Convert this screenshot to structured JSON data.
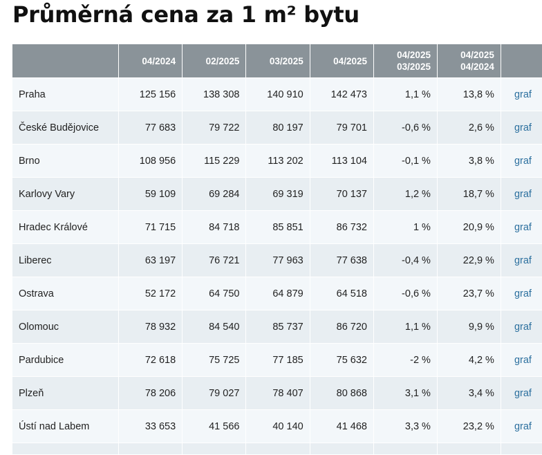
{
  "title": "Průměrná cena za 1 m² bytu",
  "table": {
    "headers": {
      "city": "",
      "c1": "04/2024",
      "c2": "02/2025",
      "c3": "03/2025",
      "c4": "04/2025",
      "c5_top": "04/2025",
      "c5_bottom": "03/2025",
      "c6_top": "04/2025",
      "c6_bottom": "04/2024",
      "link": ""
    },
    "rows": [
      {
        "city": "Praha",
        "v1": "125 156",
        "v2": "138 308",
        "v3": "140 910",
        "v4": "142 473",
        "mom": "1,1 %",
        "yoy": "13,8 %",
        "link": "graf"
      },
      {
        "city": "České Budějovice",
        "v1": "77 683",
        "v2": "79 722",
        "v3": "80 197",
        "v4": "79 701",
        "mom": "-0,6 %",
        "yoy": "2,6 %",
        "link": "graf"
      },
      {
        "city": "Brno",
        "v1": "108 956",
        "v2": "115 229",
        "v3": "113 202",
        "v4": "113 104",
        "mom": "-0,1 %",
        "yoy": "3,8 %",
        "link": "graf"
      },
      {
        "city": "Karlovy Vary",
        "v1": "59 109",
        "v2": "69 284",
        "v3": "69 319",
        "v4": "70 137",
        "mom": "1,2 %",
        "yoy": "18,7 %",
        "link": "graf"
      },
      {
        "city": "Hradec Králové",
        "v1": "71 715",
        "v2": "84 718",
        "v3": "85 851",
        "v4": "86 732",
        "mom": "1 %",
        "yoy": "20,9 %",
        "link": "graf"
      },
      {
        "city": "Liberec",
        "v1": "63 197",
        "v2": "76 721",
        "v3": "77 963",
        "v4": "77 638",
        "mom": "-0,4 %",
        "yoy": "22,9 %",
        "link": "graf"
      },
      {
        "city": "Ostrava",
        "v1": "52 172",
        "v2": "64 750",
        "v3": "64 879",
        "v4": "64 518",
        "mom": "-0,6 %",
        "yoy": "23,7 %",
        "link": "graf"
      },
      {
        "city": "Olomouc",
        "v1": "78 932",
        "v2": "84 540",
        "v3": "85 737",
        "v4": "86 720",
        "mom": "1,1 %",
        "yoy": "9,9 %",
        "link": "graf"
      },
      {
        "city": "Pardubice",
        "v1": "72 618",
        "v2": "75 725",
        "v3": "77 185",
        "v4": "75 632",
        "mom": "-2 %",
        "yoy": "4,2 %",
        "link": "graf"
      },
      {
        "city": "Plzeň",
        "v1": "78 206",
        "v2": "79 027",
        "v3": "78 407",
        "v4": "80 868",
        "mom": "3,1 %",
        "yoy": "3,4 %",
        "link": "graf"
      },
      {
        "city": "Ústí nad Labem",
        "v1": "33 653",
        "v2": "41 566",
        "v3": "40 140",
        "v4": "41 468",
        "mom": "3,3 %",
        "yoy": "23,2 %",
        "link": "graf"
      }
    ]
  }
}
